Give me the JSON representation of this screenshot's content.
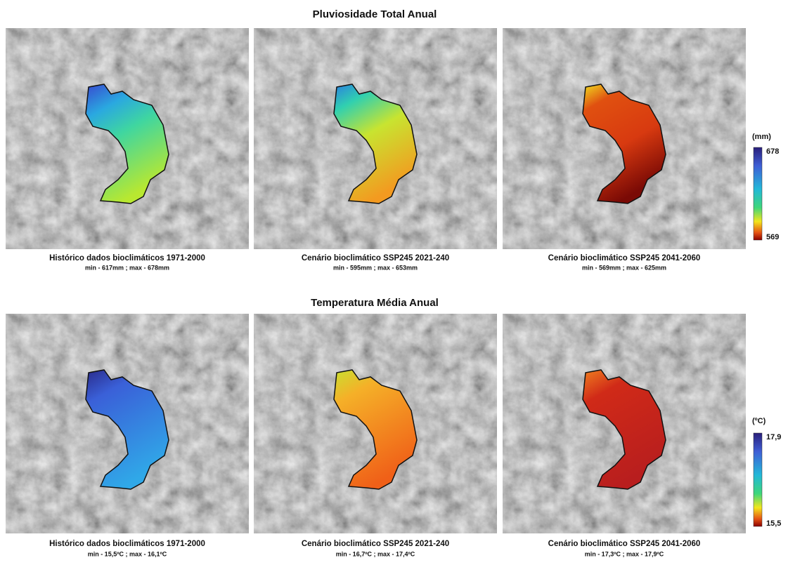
{
  "rows": [
    {
      "title": "Pluviosidade Total Anual",
      "panels": [
        {
          "caption": "Histórico dados bioclimáticos 1971-2000",
          "range": "min - 617mm ; max - 678mm"
        },
        {
          "caption": "Cenário bioclimático SSP245 2021-240",
          "range": "min - 595mm ; max - 653mm"
        },
        {
          "caption": "Cenário bioclimático SSP245 2041-2060",
          "range": "min - 569mm ; max - 625mm"
        }
      ],
      "legend": {
        "unit": "(mm)",
        "max": "678",
        "min": "569"
      }
    },
    {
      "title": "Temperatura Média Anual",
      "panels": [
        {
          "caption": "Histórico dados bioclimáticos 1971-2000",
          "range": "min - 15,5ºC ; max - 16,1ºC"
        },
        {
          "caption": "Cenário bioclimático SSP245 2021-240",
          "range": "min - 16,7ºC ; max - 17,4ºC"
        },
        {
          "caption": "Cenário bioclimático SSP245 2041-2060",
          "range": "min - 17,3ºC ; max - 17,9ºC"
        }
      ],
      "legend": {
        "unit": "(ºC)",
        "max": "17,9",
        "min": "15,5"
      }
    }
  ]
}
